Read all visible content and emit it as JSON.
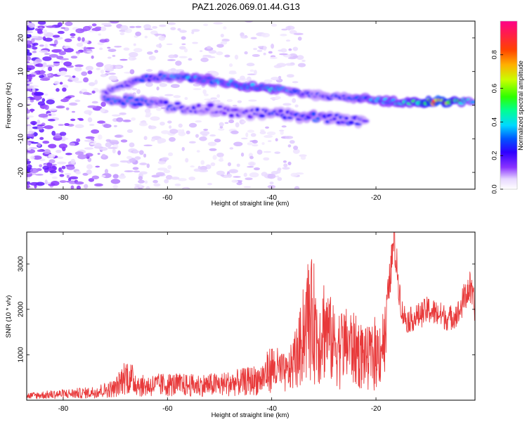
{
  "title": "PAZ1.2026.069.01.44.G13",
  "chart_data": [
    {
      "type": "heatmap",
      "name": "spectrogram",
      "xlabel": "Height of straight line (km)",
      "ylabel": "Frequency (Hz)",
      "xlim": [
        -87,
        -1
      ],
      "ylim": [
        -25,
        25
      ],
      "xticks": [
        -80,
        -60,
        -40,
        -20
      ],
      "xtick_labels": [
        "-80",
        "-60",
        "-40",
        "-20"
      ],
      "yticks": [
        20,
        10,
        0,
        -10,
        -20
      ],
      "ytick_labels": [
        "20",
        "10",
        "0",
        "-10",
        "-20"
      ],
      "colorbar": {
        "label": "Normalized spectral amplitude",
        "range": [
          0,
          1
        ],
        "ticks": [
          0.0,
          0.2,
          0.4,
          0.6,
          0.8
        ],
        "tick_labels": [
          "0.0",
          "0.2",
          "0.4",
          "0.6",
          "0.8"
        ]
      },
      "ridge_upper": {
        "x": [
          -72,
          -68,
          -64,
          -60,
          -56,
          -52,
          -48,
          -44,
          -40,
          -36,
          -32,
          -28,
          -24,
          -20,
          -16,
          -12,
          -8,
          -4,
          -1
        ],
        "freq": [
          4,
          6,
          8,
          8.5,
          8,
          7.5,
          6.5,
          5.5,
          5,
          4,
          3,
          2.5,
          2,
          1.5,
          1,
          1,
          1,
          1,
          1
        ],
        "amplitude": [
          0.2,
          0.25,
          0.3,
          0.3,
          0.35,
          0.35,
          0.35,
          0.4,
          0.4,
          0.3,
          0.25,
          0.25,
          0.3,
          0.35,
          0.4,
          0.5,
          0.85,
          0.5,
          0.3
        ]
      },
      "ridge_lower": {
        "x": [
          -72,
          -66,
          -60,
          -56,
          -52,
          -48,
          -44,
          -40,
          -36,
          -32,
          -28,
          -24,
          -22
        ],
        "freq": [
          2,
          1,
          0,
          -1,
          -1,
          -2,
          -2.5,
          -2,
          -3,
          -3.5,
          -4,
          -4.5,
          -4.5
        ],
        "amplitude": [
          0.3,
          0.3,
          0.25,
          0.2,
          0.2,
          0.2,
          0.2,
          0.25,
          0.25,
          0.3,
          0.25,
          0.25,
          0.2
        ]
      }
    },
    {
      "type": "line",
      "name": "snr",
      "xlabel": "Height of straight line (km)",
      "ylabel": "SNR (10 * v/v)",
      "xlim": [
        -87,
        -1
      ],
      "ylim": [
        0,
        3700
      ],
      "xticks": [
        -80,
        -60,
        -40,
        -20
      ],
      "xtick_labels": [
        "-80",
        "-60",
        "-40",
        "-20"
      ],
      "yticks": [
        1000,
        2000,
        3000
      ],
      "ytick_labels": [
        "1000",
        "2000",
        "3000"
      ],
      "color": "#e8393a",
      "series": [
        {
          "name": "SNR envelope",
          "x": [
            -87,
            -80,
            -75,
            -70,
            -68,
            -65,
            -60,
            -55,
            -50,
            -45,
            -42,
            -40,
            -37,
            -35,
            -33,
            -32,
            -31,
            -30,
            -28,
            -25,
            -22,
            -20,
            -18,
            -17,
            -16.5,
            -16,
            -15,
            -14,
            -12,
            -10,
            -8,
            -6,
            -4,
            -3,
            -2,
            -1
          ],
          "y": [
            150,
            220,
            260,
            420,
            880,
            500,
            550,
            520,
            550,
            650,
            750,
            1150,
            900,
            1600,
            2800,
            2950,
            2000,
            2600,
            1900,
            1900,
            1500,
            1550,
            2100,
            3100,
            3700,
            3000,
            2000,
            1800,
            1900,
            2050,
            1950,
            1850,
            2000,
            2350,
            2550,
            2100
          ]
        }
      ]
    }
  ]
}
